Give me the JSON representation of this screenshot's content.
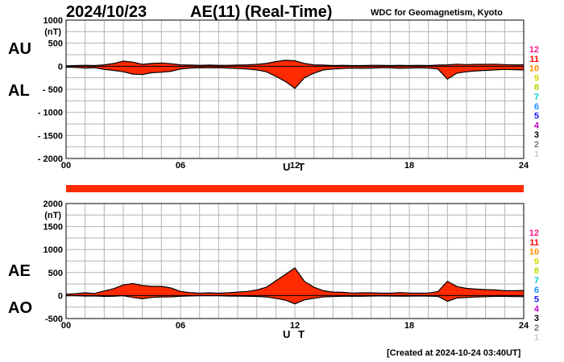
{
  "header": {
    "date": "2024/10/23",
    "title": "AE(11) (Real-Time)",
    "source": "WDC for Geomagnetism, Kyoto",
    "created": "[Created at 2024-10-24 03:40UT]"
  },
  "labels": {
    "au": "AU",
    "al": "AL",
    "ae": "AE",
    "ao": "AO"
  },
  "colors": {
    "fill": "#ff2a00",
    "outline": "#000000",
    "grid": "#b4b4b4",
    "bar": "#ff2a00"
  },
  "chart_data": [
    {
      "type": "area",
      "name": "AU/AL",
      "title": "AE(11) (Real-Time)",
      "xlabel": "U T",
      "ylabel": "(nT)",
      "xlim": [
        0,
        24
      ],
      "ylim": [
        -2000,
        1000
      ],
      "xticks": [
        0,
        6,
        12,
        18,
        24
      ],
      "xtick_labels": [
        "00",
        "06",
        "12",
        "18",
        "24"
      ],
      "yticks": [
        1000,
        500,
        0,
        -500,
        -1000,
        -1500,
        -2000
      ],
      "ytick_labels": [
        "1000",
        "500",
        "0",
        "- 500",
        "- 1000",
        "- 1500",
        "- 2000"
      ],
      "grid": true,
      "x": [
        0,
        0.5,
        1,
        1.5,
        2,
        2.5,
        3,
        3.5,
        4,
        4.5,
        5,
        5.5,
        6,
        6.5,
        7,
        7.5,
        8,
        8.5,
        9,
        9.5,
        10,
        10.5,
        11,
        11.5,
        12,
        12.5,
        13,
        13.5,
        14,
        14.5,
        15,
        15.5,
        16,
        16.5,
        17,
        17.5,
        18,
        18.5,
        19,
        19.5,
        20,
        20.5,
        21,
        21.5,
        22,
        22.5,
        23,
        23.5,
        24
      ],
      "series": [
        {
          "name": "AU",
          "values": [
            10,
            15,
            20,
            15,
            30,
            60,
            110,
            90,
            40,
            60,
            70,
            55,
            30,
            25,
            20,
            25,
            20,
            20,
            25,
            30,
            40,
            60,
            100,
            130,
            120,
            60,
            30,
            25,
            15,
            20,
            15,
            15,
            20,
            20,
            15,
            20,
            15,
            20,
            15,
            25,
            30,
            45,
            35,
            40,
            40,
            45,
            35,
            30,
            30
          ]
        },
        {
          "name": "AL",
          "values": [
            -20,
            -25,
            -40,
            -30,
            -70,
            -90,
            -120,
            -170,
            -180,
            -140,
            -130,
            -110,
            -60,
            -40,
            -30,
            -35,
            -30,
            -40,
            -50,
            -60,
            -80,
            -120,
            -220,
            -330,
            -480,
            -250,
            -150,
            -80,
            -60,
            -50,
            -40,
            -45,
            -40,
            -35,
            -35,
            -45,
            -40,
            -35,
            -40,
            -60,
            -280,
            -150,
            -120,
            -100,
            -90,
            -80,
            -70,
            -75,
            -80
          ]
        }
      ]
    },
    {
      "type": "area",
      "name": "AE/AO",
      "xlabel": "U T",
      "ylabel": "(nT)",
      "xlim": [
        0,
        24
      ],
      "ylim": [
        -500,
        2000
      ],
      "xticks": [
        0,
        6,
        12,
        18,
        24
      ],
      "xtick_labels": [
        "00",
        "06",
        "12",
        "18",
        "24"
      ],
      "yticks": [
        2000,
        1500,
        1000,
        500,
        0,
        -500
      ],
      "ytick_labels": [
        "2000",
        "1500",
        "1000",
        "500",
        "0",
        "-500"
      ],
      "grid": true,
      "x": [
        0,
        0.5,
        1,
        1.5,
        2,
        2.5,
        3,
        3.5,
        4,
        4.5,
        5,
        5.5,
        6,
        6.5,
        7,
        7.5,
        8,
        8.5,
        9,
        9.5,
        10,
        10.5,
        11,
        11.5,
        12,
        12.5,
        13,
        13.5,
        14,
        14.5,
        15,
        15.5,
        16,
        16.5,
        17,
        17.5,
        18,
        18.5,
        19,
        19.5,
        20,
        20.5,
        21,
        21.5,
        22,
        22.5,
        23,
        23.5,
        24
      ],
      "series": [
        {
          "name": "AE",
          "values": [
            30,
            40,
            60,
            45,
            100,
            150,
            230,
            260,
            220,
            200,
            200,
            165,
            90,
            65,
            50,
            60,
            50,
            60,
            75,
            90,
            120,
            180,
            320,
            460,
            600,
            310,
            180,
            105,
            75,
            70,
            55,
            60,
            60,
            55,
            50,
            65,
            55,
            55,
            55,
            85,
            310,
            195,
            155,
            140,
            130,
            125,
            105,
            105,
            110
          ]
        },
        {
          "name": "AO",
          "values": [
            -5,
            -5,
            -10,
            -8,
            -20,
            -15,
            -5,
            -40,
            -70,
            -40,
            -30,
            -28,
            -15,
            -8,
            -5,
            -5,
            -5,
            -10,
            -12,
            -15,
            -20,
            -30,
            -60,
            -100,
            -180,
            -95,
            -60,
            -28,
            -22,
            -15,
            -12,
            -15,
            -10,
            -8,
            -10,
            -12,
            -12,
            -8,
            -12,
            -18,
            -125,
            -52,
            -42,
            -30,
            -25,
            -18,
            -18,
            -22,
            -25
          ]
        }
      ]
    }
  ],
  "station_counts": [
    "12",
    "11",
    "10",
    "9",
    "8",
    "7",
    "6",
    "5",
    "4",
    "3",
    "2",
    "1"
  ],
  "station_colors": [
    "#ff1a8c",
    "#ff0000",
    "#ff8c00",
    "#d8d800",
    "#aadd00",
    "#00cccc",
    "#1e90ff",
    "#1a1aff",
    "#cc00cc",
    "#000000",
    "#777777",
    "#cccccc"
  ]
}
